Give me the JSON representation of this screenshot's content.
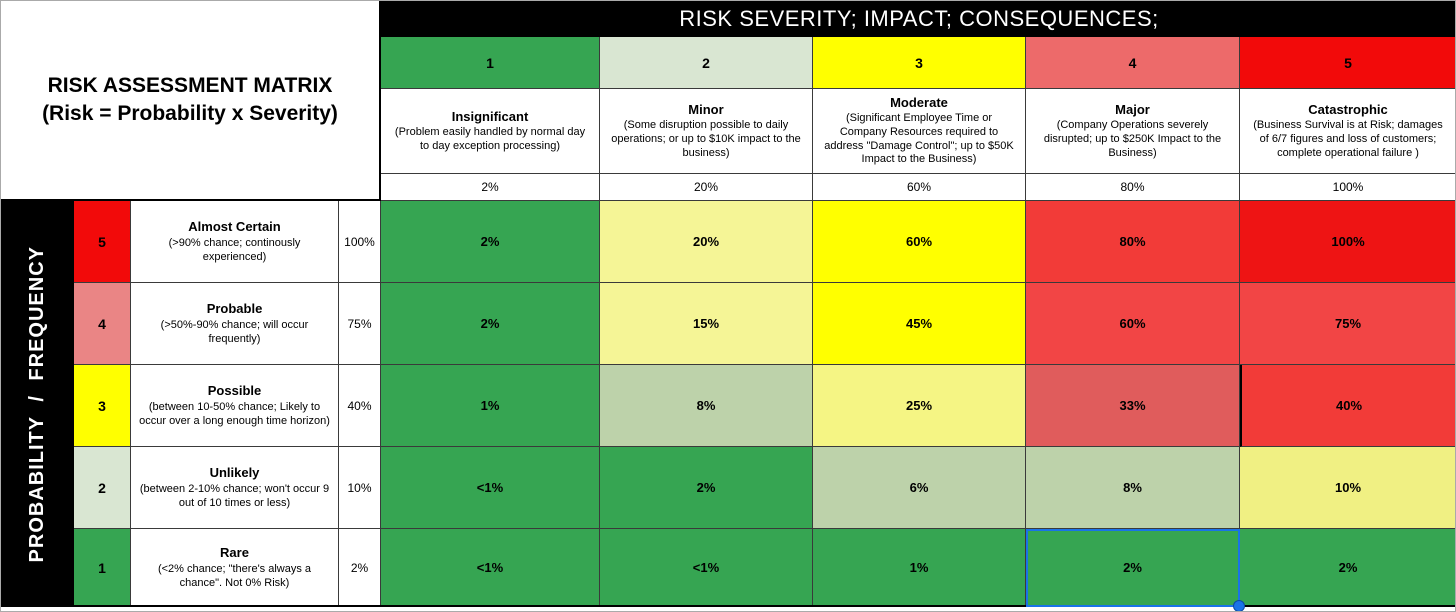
{
  "corner": {
    "title_line1": "RISK ASSESSMENT MATRIX",
    "title_line2": "(Risk = Probability x Severity)"
  },
  "severity_header": "RISK SEVERITY; IMPACT; CONSEQUENCES;",
  "probability_header": "PROBABILITY / FREQUENCY",
  "colors": {
    "green": "#36A552",
    "pale_green": "#D9E6D2",
    "yellow": "#FFFF00",
    "salmon": "#ED6A6A",
    "red": "#F20A0A",
    "selection_blue": "#1A73E8"
  },
  "severity_columns": [
    {
      "level": "1",
      "name": "Insignificant",
      "description": "(Problem easily handled by normal day to day exception processing)",
      "percent": "2%",
      "color": "#36A552"
    },
    {
      "level": "2",
      "name": "Minor",
      "description": "(Some disruption possible to daily operations;  or up to $10K impact to the business)",
      "percent": "20%",
      "color": "#D9E6D2"
    },
    {
      "level": "3",
      "name": "Moderate",
      "description": "(Significant Employee Time or Company Resources required to address \"Damage Control\";  up to $50K Impact to the Business)",
      "percent": "60%",
      "color": "#FFFF00"
    },
    {
      "level": "4",
      "name": "Major",
      "description": "(Company Operations severely disrupted;  up to $250K Impact to the Business)",
      "percent": "80%",
      "color": "#ED6A6A"
    },
    {
      "level": "5",
      "name": "Catastrophic",
      "description": "(Business Survival is at Risk; damages of 6/7 figures and loss of customers;  complete operational failure )",
      "percent": "100%",
      "color": "#F20A0A"
    }
  ],
  "probability_rows": [
    {
      "level": "5",
      "name": "Almost Certain",
      "description": "(>90% chance; continously experienced)",
      "percent": "100%",
      "color": "#F20A0A"
    },
    {
      "level": "4",
      "name": "Probable",
      "description": "(>50%-90% chance; will occur frequently)",
      "percent": "75%",
      "color": "#EA8585"
    },
    {
      "level": "3",
      "name": "Possible",
      "description": "(between 10-50% chance; Likely to occur over a long enough time horizon)",
      "percent": "40%",
      "color": "#FFFF00"
    },
    {
      "level": "2",
      "name": "Unlikely",
      "description": "(between 2-10% chance; won't occur 9 out of 10 times or less)",
      "percent": "10%",
      "color": "#D9E6D2"
    },
    {
      "level": "1",
      "name": "Rare",
      "description": "(<2% chance;  \"there's always a chance\".  Not 0% Risk)",
      "percent": "2%",
      "color": "#36A552"
    }
  ],
  "matrix": {
    "rows": [
      {
        "cells": [
          {
            "value": "2%",
            "color": "#36A552"
          },
          {
            "value": "20%",
            "color": "#F5F596"
          },
          {
            "value": "60%",
            "color": "#FFFF00"
          },
          {
            "value": "80%",
            "color": "#F23B38"
          },
          {
            "value": "100%",
            "color": "#EE1414"
          }
        ]
      },
      {
        "cells": [
          {
            "value": "2%",
            "color": "#36A552"
          },
          {
            "value": "15%",
            "color": "#F5F596"
          },
          {
            "value": "45%",
            "color": "#FFFF00"
          },
          {
            "value": "60%",
            "color": "#F24545"
          },
          {
            "value": "75%",
            "color": "#F24545"
          }
        ]
      },
      {
        "cells": [
          {
            "value": "1%",
            "color": "#36A552"
          },
          {
            "value": "8%",
            "color": "#BDD2AA"
          },
          {
            "value": "25%",
            "color": "#F5F584"
          },
          {
            "value": "33%",
            "color": "#E05C5C"
          },
          {
            "value": "40%",
            "color": "#F23B38"
          }
        ]
      },
      {
        "cells": [
          {
            "value": "<1%",
            "color": "#36A552"
          },
          {
            "value": "2%",
            "color": "#36A552"
          },
          {
            "value": "6%",
            "color": "#BDD2AA"
          },
          {
            "value": "8%",
            "color": "#BDD2AA"
          },
          {
            "value": "10%",
            "color": "#F0F083"
          }
        ]
      },
      {
        "cells": [
          {
            "value": "<1%",
            "color": "#36A552"
          },
          {
            "value": "<1%",
            "color": "#36A552"
          },
          {
            "value": "1%",
            "color": "#36A552"
          },
          {
            "value": "2%",
            "color": "#36A552"
          },
          {
            "value": "2%",
            "color": "#36A552"
          }
        ]
      }
    ]
  }
}
